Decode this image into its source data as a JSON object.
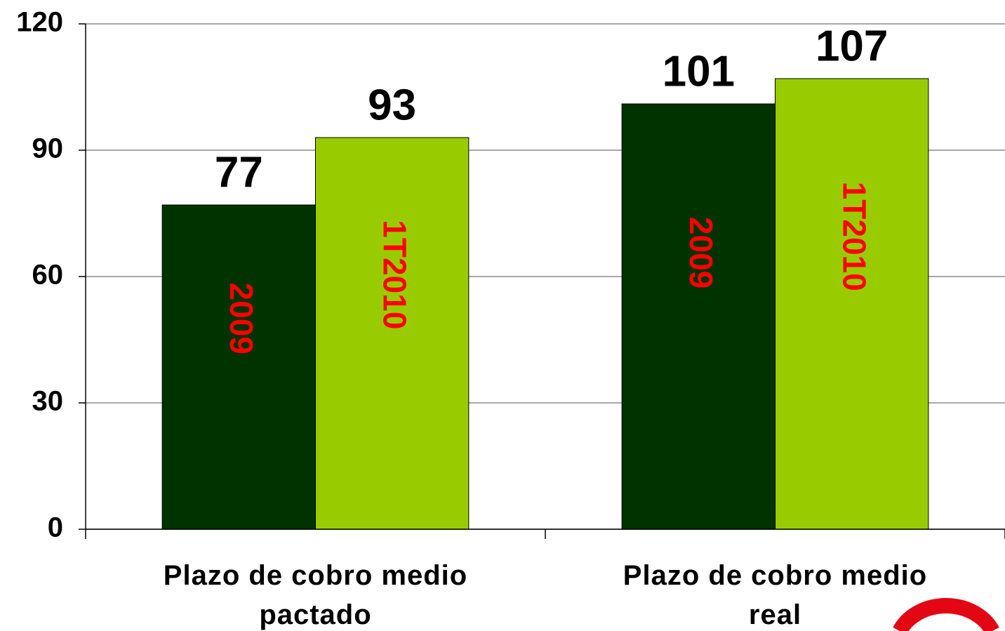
{
  "chart_data": {
    "type": "bar",
    "categories": [
      "Plazo de cobro medio pactado",
      "Plazo de cobro medio real"
    ],
    "series": [
      {
        "name": "2009",
        "color": "#003300",
        "values": [
          77,
          101
        ]
      },
      {
        "name": "1T2010",
        "color": "#99cc00",
        "values": [
          93,
          107
        ]
      }
    ],
    "ylim": [
      0,
      120
    ],
    "yticks": [
      0,
      30,
      60,
      90,
      120
    ],
    "grid": true
  }
}
